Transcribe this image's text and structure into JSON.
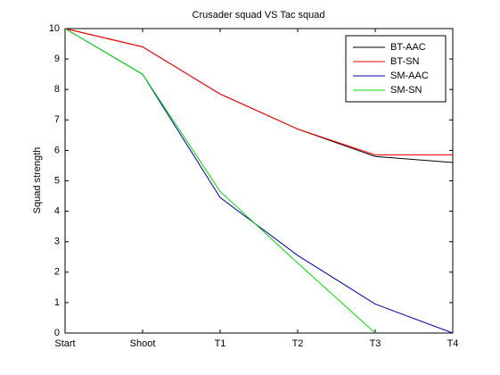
{
  "chart_data": {
    "type": "line",
    "title": "Crusader squad VS Tac squad",
    "y_label": "Squad strength",
    "categories": [
      "Start",
      "Shoot",
      "T1",
      "T2",
      "T3",
      "T4"
    ],
    "series": [
      {
        "name": "BT-AAC",
        "color": "#000000",
        "values": [
          10,
          9.4,
          7.85,
          6.7,
          5.8,
          5.6
        ]
      },
      {
        "name": "BT-SN",
        "color": "#ff0000",
        "values": [
          10,
          9.4,
          7.85,
          6.7,
          5.85,
          5.85
        ]
      },
      {
        "name": "SM-AAC",
        "color": "#0000aa",
        "values": [
          10,
          8.5,
          4.45,
          2.55,
          0.95,
          0
        ]
      },
      {
        "name": "SM-SN",
        "color": "#00dd00",
        "values": [
          10,
          8.5,
          4.65,
          2.3,
          0,
          null
        ]
      }
    ],
    "ylim": [
      0,
      10
    ],
    "yticks": [
      0,
      1,
      2,
      3,
      4,
      5,
      6,
      7,
      8,
      9,
      10
    ],
    "legend": "upper right"
  }
}
